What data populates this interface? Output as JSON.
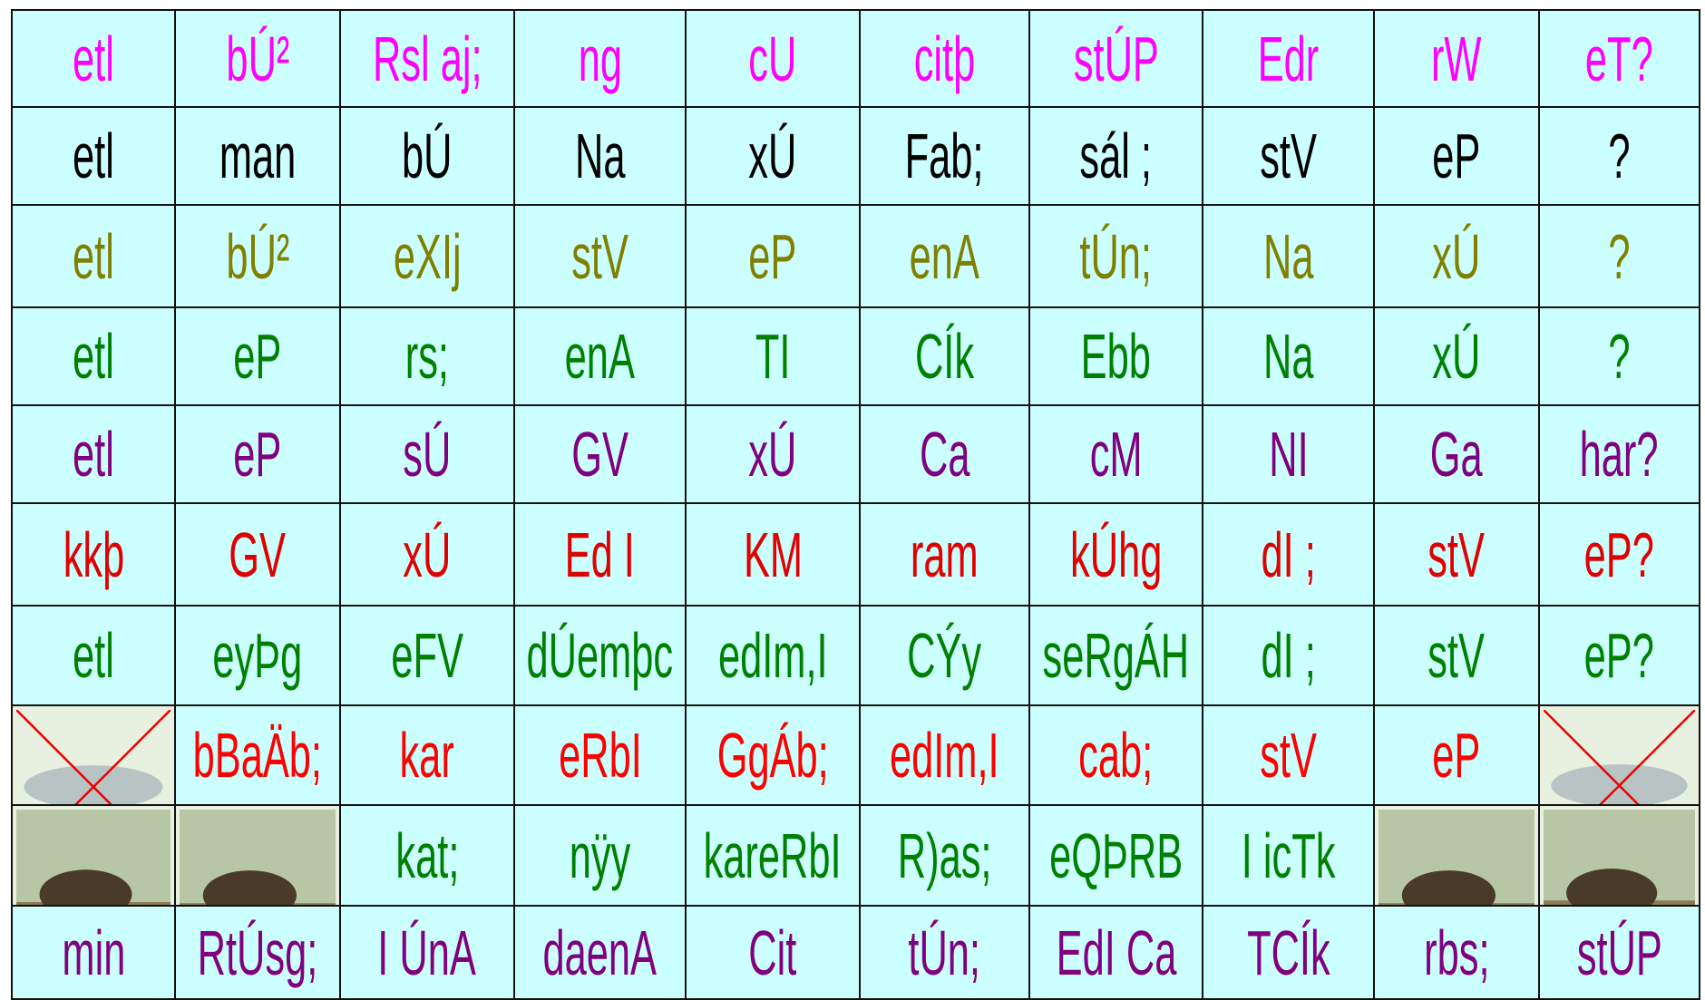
{
  "table": {
    "rows": [
      [
        "etl",
        "bÚ²",
        "Rsl aj;",
        "ng",
        "cU",
        "citþ",
        "stÚP",
        "Edr",
        "rW",
        "eT?"
      ],
      [
        "etl",
        "man",
        "bÚ",
        "Na",
        "xÚ",
        "Fab;",
        "sál ;",
        "stV",
        "eP",
        "?"
      ],
      [
        "etl",
        "bÚ²",
        "eXIj",
        "stV",
        "eP",
        "enA",
        "tÚn;",
        "Na",
        "xÚ",
        "?"
      ],
      [
        "etl",
        "eP",
        "rs;",
        "enA",
        "TI",
        "CÍk",
        "Ebb",
        "Na",
        "xÚ",
        "?"
      ],
      [
        "etl",
        "eP",
        "sÚ",
        "GV",
        "xÚ",
        "Ca",
        "cM",
        "NI",
        "Ga",
        "har?"
      ],
      [
        "kkþ",
        "GV",
        "xÚ",
        "Ed I",
        "KM",
        "ram",
        "kÚhg",
        "dI ;",
        "stV",
        "eP?"
      ],
      [
        "etl",
        "eyÞg",
        "eFV",
        "dÚemþc",
        "edIm,I",
        "CÝy",
        "seRgÁH",
        "dI ;",
        "stV",
        "eP?"
      ],
      [
        null,
        "bBaÄb;",
        "kar",
        "eRbI",
        "GgÁb;",
        "edIm,I",
        "cab;",
        "stV",
        "eP",
        null
      ],
      [
        null,
        null,
        "kat;",
        "nÿy",
        "kareRbI",
        "R)as;",
        "eQÞRB",
        "I icTk",
        null,
        null
      ],
      [
        "min",
        "RtÚsg;",
        "I ÚnA",
        "daenA",
        "Cit",
        "tÚn;",
        "EdI Ca",
        "TCÍk",
        "rbs;",
        "stÚP"
      ]
    ]
  }
}
